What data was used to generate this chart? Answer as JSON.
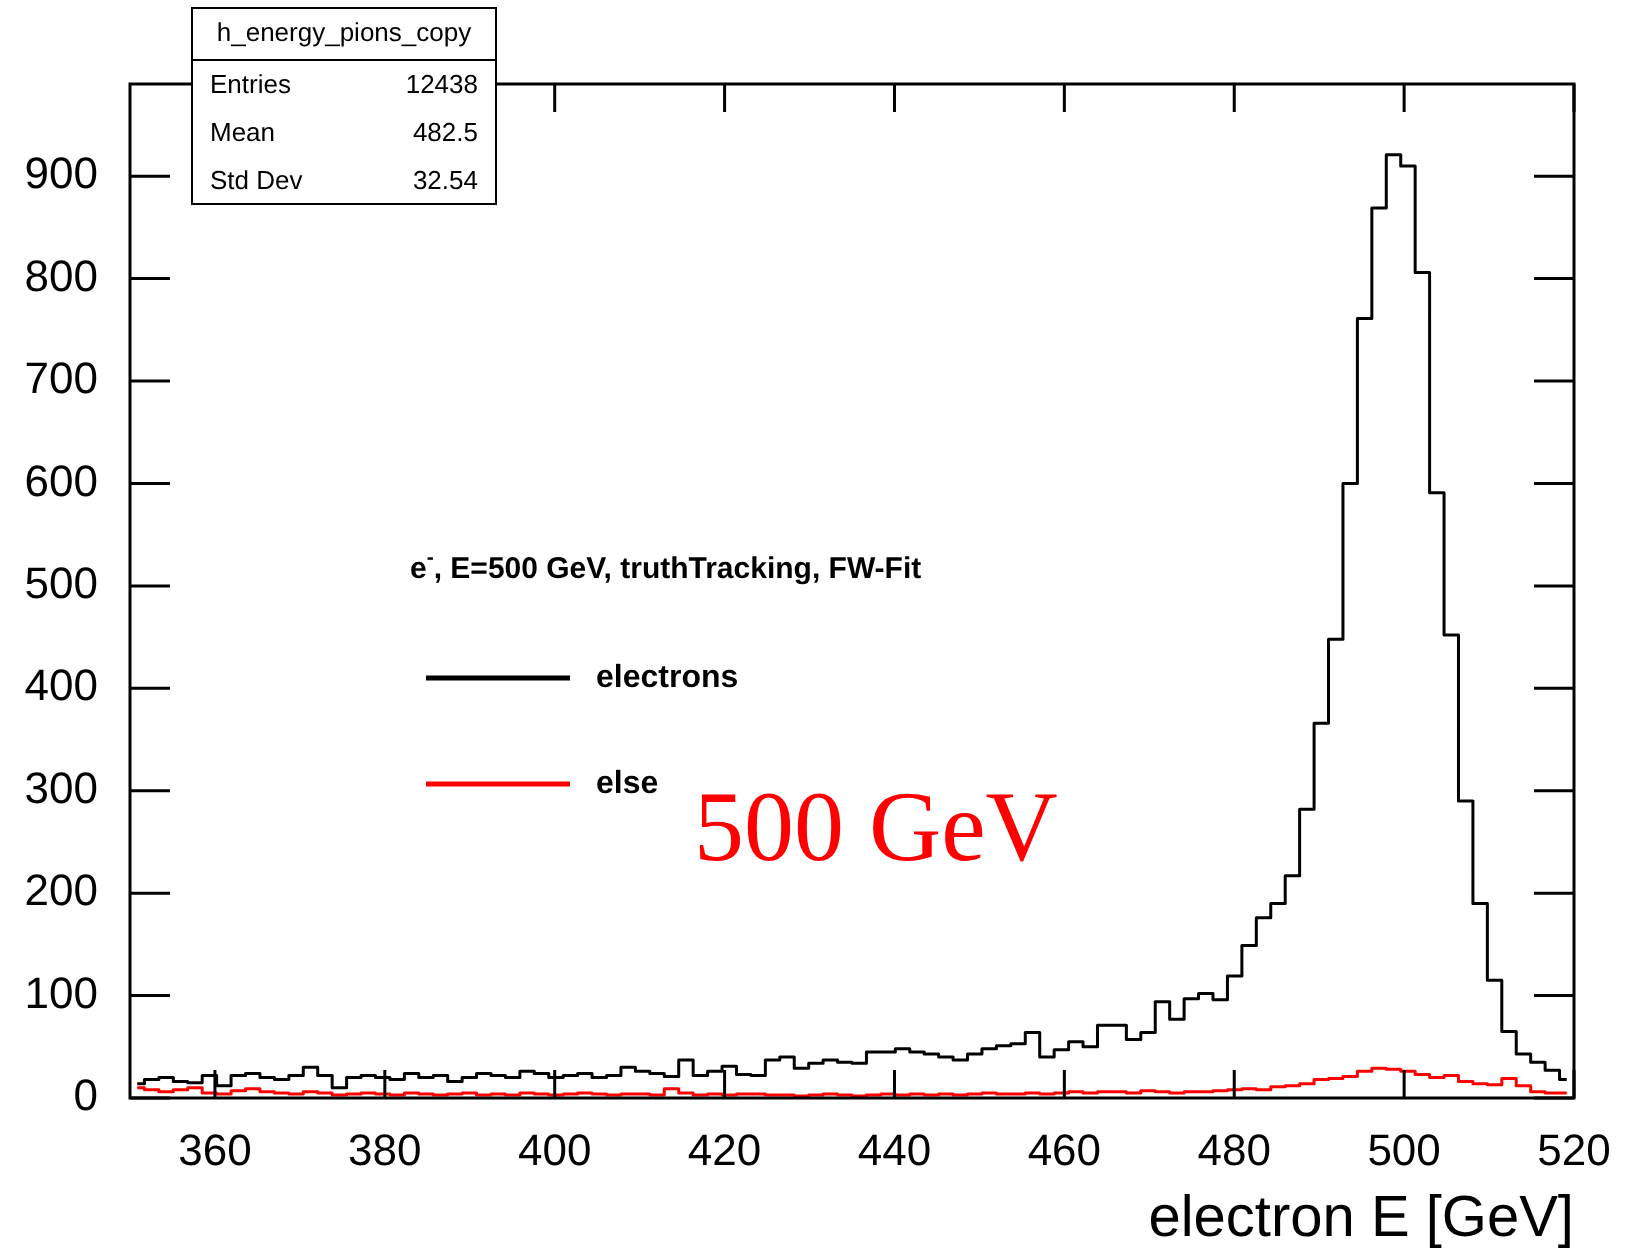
{
  "chart_data": {
    "type": "step",
    "x": [
      350.85,
      352.55,
      354.25,
      355.95,
      357.65,
      359.35,
      361.05,
      362.75,
      364.45,
      366.15,
      367.85,
      369.55,
      371.25,
      372.95,
      374.65,
      376.35,
      378.05,
      379.75,
      381.45,
      383.15,
      384.85,
      386.55,
      388.25,
      389.95,
      391.65,
      393.35,
      395.05,
      396.75,
      398.45,
      400.15,
      401.85,
      403.55,
      405.25,
      406.95,
      408.65,
      410.35,
      412.05,
      413.75,
      415.45,
      417.15,
      418.85,
      420.55,
      422.25,
      423.95,
      425.65,
      427.35,
      429.05,
      430.75,
      432.45,
      434.15,
      435.85,
      437.55,
      439.25,
      440.95,
      442.65,
      444.35,
      446.05,
      447.75,
      449.45,
      451.15,
      452.85,
      454.55,
      456.25,
      457.95,
      459.65,
      461.35,
      463.05,
      464.75,
      466.45,
      468.15,
      469.85,
      471.55,
      473.25,
      474.95,
      476.65,
      478.35,
      480.05,
      481.75,
      483.45,
      485.15,
      486.85,
      488.55,
      490.25,
      491.95,
      493.65,
      495.35,
      497.05,
      498.75,
      500.45,
      502.15,
      503.85,
      505.55,
      507.25,
      508.95,
      510.65,
      512.35,
      514.05,
      515.75,
      517.45,
      519.15
    ],
    "xlabel": "electron E [GeV]",
    "legend_title": "e$^{-}$, E=500 GeV, truthTracking, FW-Fit",
    "legend": "left",
    "grid": false,
    "xlim": [
      350,
      520
    ],
    "ylim": [
      0,
      990
    ],
    "xticks": [
      360,
      380,
      400,
      420,
      440,
      460,
      480,
      500,
      520
    ],
    "yticks": [
      0,
      100,
      200,
      300,
      400,
      500,
      600,
      700,
      800,
      900
    ],
    "series": [
      {
        "name": "electrons",
        "color": "#000000",
        "values": [
          14,
          18,
          20,
          16,
          15,
          22,
          12,
          22,
          24,
          20,
          18,
          22,
          30,
          22,
          10,
          20,
          22,
          20,
          18,
          24,
          20,
          22,
          16,
          20,
          24,
          22,
          20,
          26,
          24,
          20,
          22,
          24,
          20,
          22,
          30,
          26,
          24,
          21,
          37,
          22,
          26,
          31,
          23,
          22,
          37,
          40,
          29,
          34,
          37,
          35,
          34,
          45,
          45,
          48,
          45,
          43,
          40,
          37,
          43,
          48,
          51,
          53,
          64,
          40,
          47,
          55,
          50,
          71,
          71,
          57,
          64,
          94,
          77,
          97,
          102,
          96,
          119,
          149,
          176,
          190,
          217,
          282,
          366,
          448,
          600,
          761,
          869,
          921,
          910,
          806,
          591,
          452,
          290,
          190,
          115,
          65,
          43,
          35,
          27,
          18
        ]
      },
      {
        "name": "else",
        "color": "#ff0000",
        "values": [
          10,
          8,
          6,
          8,
          10,
          5,
          4,
          7,
          9,
          6,
          5,
          4,
          6,
          5,
          3,
          4,
          5,
          4,
          3,
          5,
          4,
          3,
          4,
          5,
          3,
          4,
          3,
          5,
          4,
          3,
          4,
          5,
          4,
          3,
          4,
          4,
          3,
          9,
          5,
          3,
          4,
          3,
          4,
          4,
          3,
          3,
          2,
          3,
          4,
          3,
          2,
          3,
          4,
          3,
          4,
          3,
          4,
          3,
          4,
          5,
          4,
          4,
          5,
          4,
          5,
          6,
          5,
          6,
          6,
          5,
          7,
          6,
          5,
          6,
          6,
          7,
          8,
          9,
          8,
          11,
          12,
          14,
          18,
          19,
          21,
          26,
          29,
          28,
          26,
          23,
          20,
          22,
          16,
          14,
          13,
          19,
          12,
          6,
          5,
          5
        ]
      }
    ],
    "annotations": [
      "h_energy_pions_copy",
      "Entries 12438",
      "Mean 482.5",
      "Std Dev 32.54",
      "500 GeV"
    ]
  }
}
